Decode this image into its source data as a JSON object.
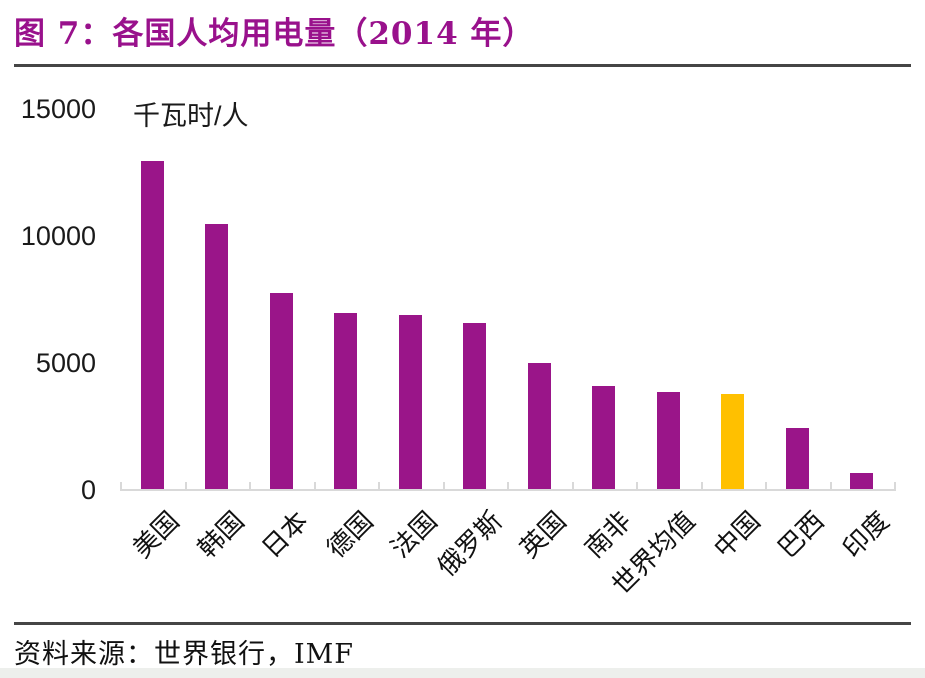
{
  "header": {
    "title": "图 7：各国人均用电量（2014 年）",
    "title_color": "#99118C"
  },
  "footer": {
    "source": "资料来源：世界银行，IMF"
  },
  "chart_data": {
    "type": "bar",
    "title": "图 7：各国人均用电量（2014 年）",
    "unit_label": "千瓦时/人",
    "categories": [
      "美国",
      "韩国",
      "日本",
      "德国",
      "法国",
      "俄罗斯",
      "英国",
      "南非",
      "世界均值",
      "中国",
      "巴西",
      "印度"
    ],
    "values": [
      13000,
      10500,
      7800,
      7000,
      6930,
      6610,
      5040,
      4130,
      3900,
      3820,
      2480,
      710
    ],
    "xlabel": "",
    "ylabel": "千瓦时/人",
    "ylim": [
      0,
      15000
    ],
    "yticks": [
      15000,
      10000,
      5000,
      0
    ],
    "grid": false,
    "legend": false,
    "bar_color": "#9A1589",
    "highlight_category": "中国",
    "highlight_color": "#FFC000",
    "axis_color": "#d9d9d9"
  }
}
